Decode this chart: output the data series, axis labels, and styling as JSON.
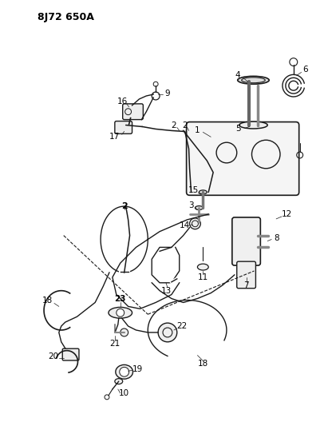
{
  "title": "8J72 650A",
  "bg_color": "#ffffff",
  "line_color": "#1a1a1a",
  "figsize": [
    4.11,
    5.33
  ],
  "dpi": 100
}
